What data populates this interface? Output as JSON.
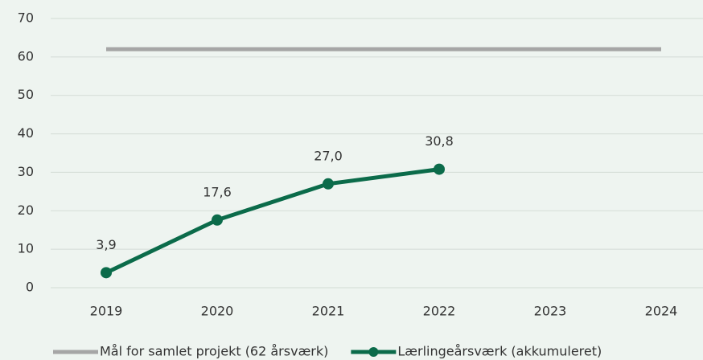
{
  "chart_data": {
    "type": "line",
    "categories": [
      "2019",
      "2020",
      "2021",
      "2022",
      "2023",
      "2024"
    ],
    "series": [
      {
        "name": "Mål for samlet projekt (62 årsværk)",
        "color": "#a6a6a6",
        "values": [
          62,
          62,
          62,
          62,
          62,
          62
        ],
        "markers": false
      },
      {
        "name": "Lærlingeårsværk (akkumuleret)",
        "color": "#0b6b4a",
        "values": [
          3.9,
          17.6,
          27.0,
          30.8,
          null,
          null
        ],
        "value_labels": [
          "3,9",
          "17,6",
          "27,0",
          "30,8",
          null,
          null
        ],
        "markers": true
      }
    ],
    "ylim": [
      0,
      70
    ],
    "yticks": [
      0,
      10,
      20,
      30,
      40,
      50,
      60,
      70
    ],
    "grid": true,
    "legend": "bottom"
  }
}
